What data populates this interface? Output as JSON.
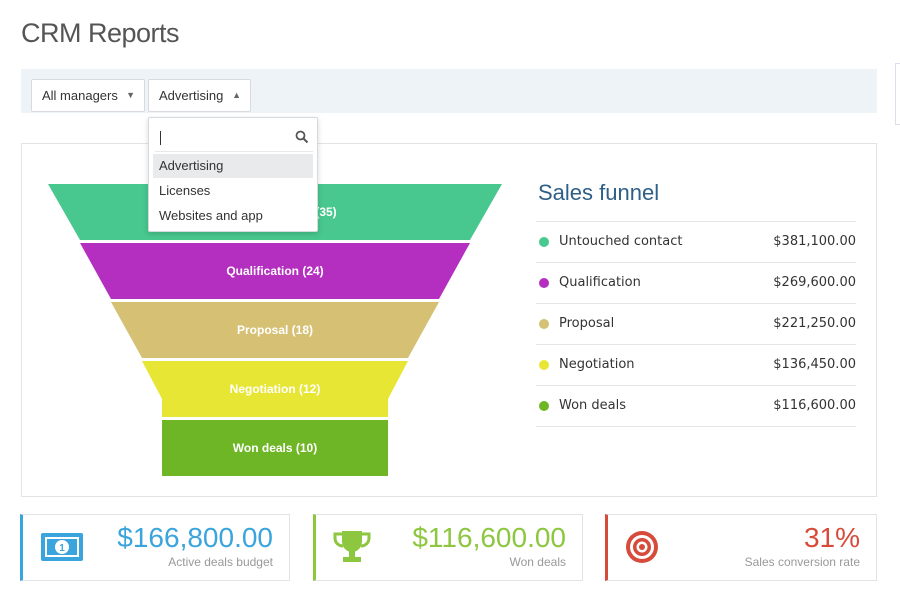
{
  "page": {
    "title": "CRM Reports"
  },
  "filters": {
    "manager": {
      "value": "All managers"
    },
    "source": {
      "value": "Advertising"
    },
    "dropdown": {
      "search_value": "",
      "options": [
        "Advertising",
        "Licenses",
        "Websites and app"
      ],
      "highlighted": "Advertising"
    }
  },
  "chart_data": {
    "type": "funnel",
    "title": "Sales funnel",
    "stages": [
      {
        "name": "Untouched contact",
        "count": 35,
        "label": "(35)",
        "amount": "$381,100.00",
        "color": "#48c78e"
      },
      {
        "name": "Qualification",
        "count": 24,
        "label": "Qualification (24)",
        "amount": "$269,600.00",
        "color": "#b42fc0"
      },
      {
        "name": "Proposal",
        "count": 18,
        "label": "Proposal (18)",
        "amount": "$221,250.00",
        "color": "#d6c074"
      },
      {
        "name": "Negotiation",
        "count": 12,
        "label": "Negotiation (12)",
        "amount": "$136,450.00",
        "color": "#e8e634"
      },
      {
        "name": "Won deals",
        "count": 10,
        "label": "Won deals (10)",
        "amount": "$116,600.00",
        "color": "#6fb626"
      }
    ]
  },
  "cards": [
    {
      "value": "$166,800.00",
      "label": "Active deals budget",
      "color": "#3aa4dd",
      "icon": "money-icon"
    },
    {
      "value": "$116,600.00",
      "label": "Won deals",
      "color": "#8dc63f",
      "icon": "trophy-icon"
    },
    {
      "value": "31%",
      "label": "Sales conversion rate",
      "color": "#d64b3a",
      "icon": "target-icon"
    }
  ]
}
